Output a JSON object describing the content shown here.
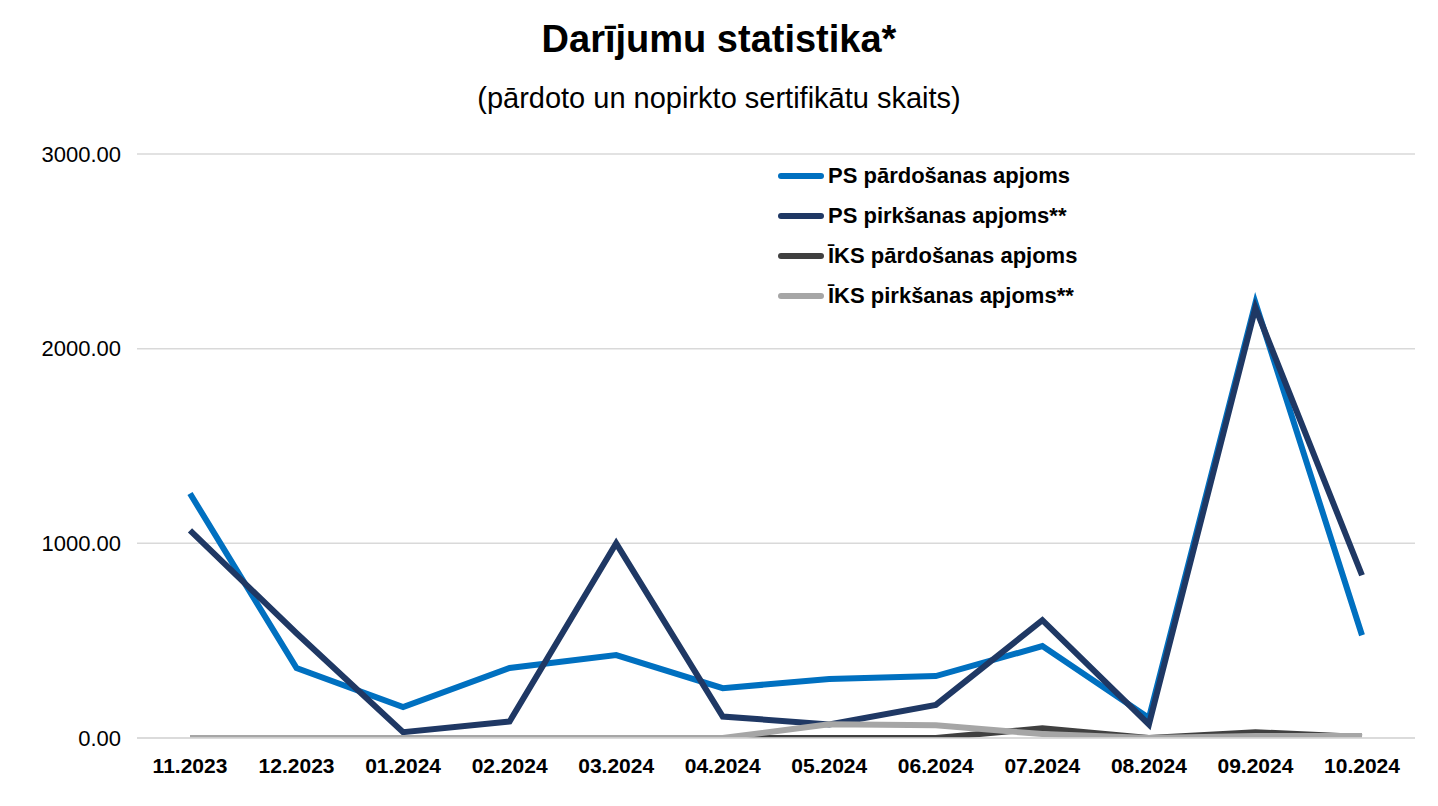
{
  "chart_data": {
    "type": "line",
    "title": "Darījumu statistika*",
    "subtitle": "(pārdoto un nopirkto sertifikātu skaits)",
    "categories": [
      "11.2023",
      "12.2023",
      "01.2024",
      "02.2024",
      "03.2024",
      "04.2024",
      "05.2024",
      "06.2024",
      "07.2024",
      "08.2024",
      "09.2024",
      "10.2024"
    ],
    "series": [
      {
        "name": "PS pārdošanas apjoms",
        "color": "#0070C0",
        "values": [
          1256,
          359,
          159,
          360,
          426,
          256,
          303,
          318,
          472,
          103,
          2236,
          528
        ]
      },
      {
        "name": "PS pirkšanas apjoms**",
        "color": "#1F3864",
        "values": [
          1067,
          538,
          30,
          85,
          1000,
          110,
          70,
          170,
          605,
          70,
          2210,
          836
        ]
      },
      {
        "name": "ĪKS pārdošanas apjoms",
        "color": "#404040",
        "values": [
          0,
          0,
          0,
          0,
          0,
          0,
          0,
          0,
          50,
          0,
          30,
          5
        ]
      },
      {
        "name": "ĪKS pirkšanas apjoms**",
        "color": "#A6A6A6",
        "values": [
          0,
          0,
          0,
          0,
          0,
          0,
          70,
          65,
          20,
          0,
          10,
          10
        ]
      }
    ],
    "ylim": [
      0,
      3000
    ],
    "yticks": [
      {
        "value": 0,
        "label": "0.00"
      },
      {
        "value": 1000,
        "label": "1000.00"
      },
      {
        "value": 2000,
        "label": "2000.00"
      },
      {
        "value": 3000,
        "label": "3000.00"
      }
    ],
    "grid": true,
    "legend": "upper right"
  }
}
